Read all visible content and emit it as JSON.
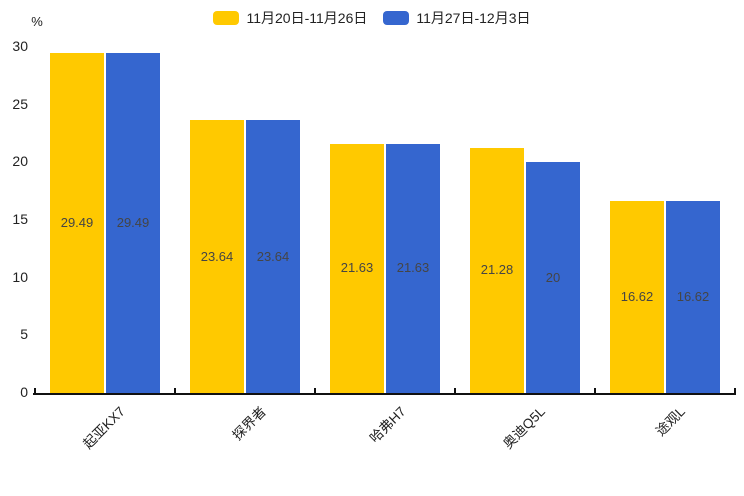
{
  "chart_data": {
    "type": "bar",
    "title": "",
    "unit_label": "%",
    "categories": [
      "起亚KX7",
      "探界者",
      "哈弗H7",
      "奥迪Q5L",
      "途观L"
    ],
    "series": [
      {
        "name": "11月20日-11月26日",
        "color": "#ffc900",
        "values": [
          29.49,
          23.64,
          21.63,
          21.28,
          16.62
        ],
        "labels": [
          "29.49",
          "23.64",
          "21.63",
          "21.28",
          "16.62"
        ]
      },
      {
        "name": "11月27日-12月3日",
        "color": "#3566cf",
        "values": [
          29.49,
          23.64,
          21.63,
          20,
          16.62
        ],
        "labels": [
          "29.49",
          "23.64",
          "21.63",
          "20",
          "16.62"
        ]
      }
    ],
    "ylim": [
      0,
      30
    ],
    "yticks": [
      0,
      5,
      10,
      15,
      20,
      25,
      30
    ],
    "ytick_labels": [
      "0",
      "5",
      "10",
      "15",
      "20",
      "25",
      "30"
    ],
    "grid": false,
    "legend_position": "top",
    "bar_label_color": "#454545",
    "axis_color": "#111111"
  }
}
